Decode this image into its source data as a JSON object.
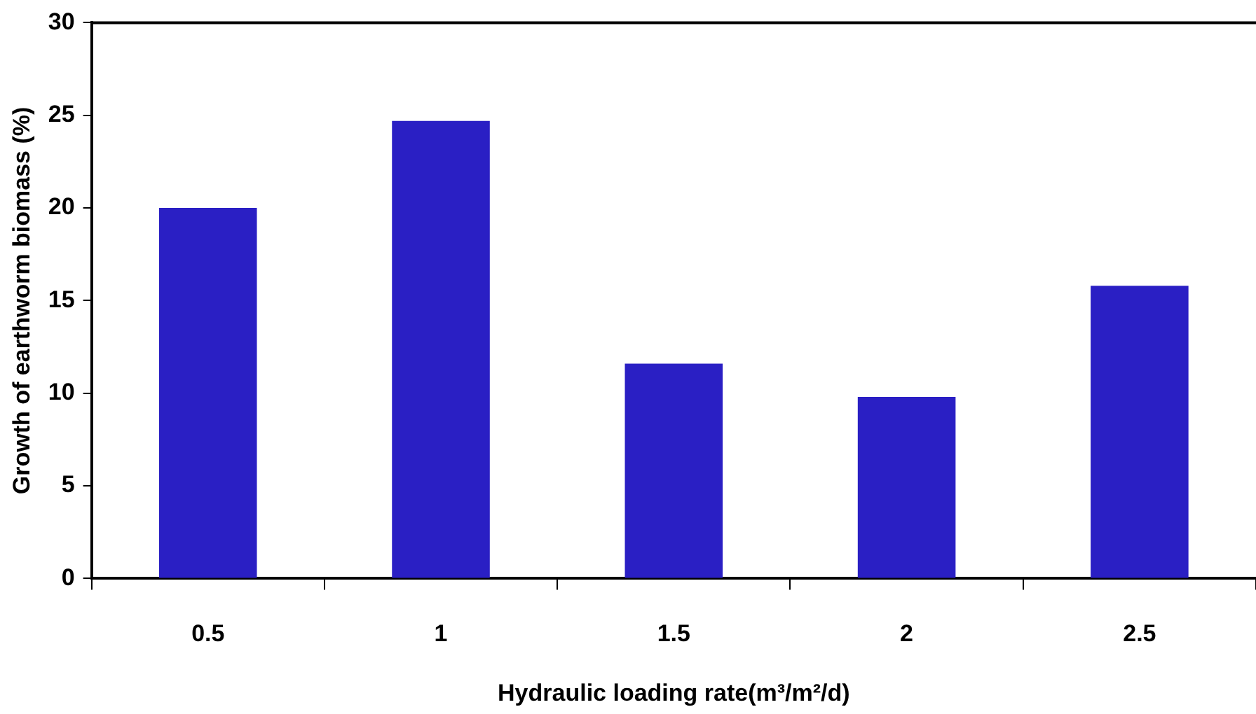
{
  "chart_data": {
    "type": "bar",
    "xlabel": "Hydraulic loading rate(m³/m²/d)",
    "ylabel": "Growth of earthworm biomass (%)",
    "categories": [
      "0.5",
      "1",
      "1.5",
      "2",
      "2.5"
    ],
    "values": [
      20.0,
      24.7,
      11.6,
      9.8,
      15.8
    ],
    "color": "#2a1fc4",
    "ylim": [
      0,
      30
    ],
    "yticks": [
      0,
      5,
      10,
      15,
      20,
      25,
      30
    ],
    "grid": false,
    "legend": false
  }
}
